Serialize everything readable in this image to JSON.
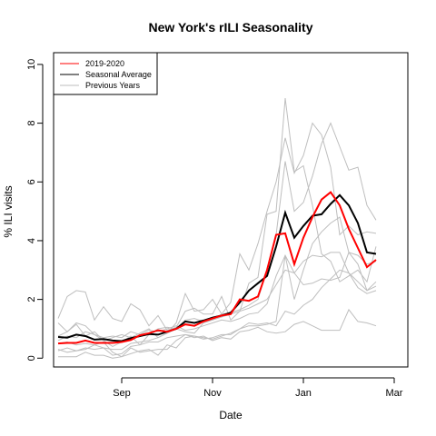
{
  "chart_data": {
    "type": "line",
    "title": "New York's rILI Seasonality",
    "xlabel": "Date",
    "ylabel": "% ILI visits",
    "x_ticks": [
      {
        "week": 7,
        "label": "Sep"
      },
      {
        "week": 17,
        "label": "Nov"
      },
      {
        "week": 27,
        "label": "Jan"
      },
      {
        "week": 37,
        "label": "Mar"
      }
    ],
    "y_ticks": [
      0,
      2,
      4,
      6,
      8,
      10
    ],
    "xlim": [
      -0.5,
      38.5
    ],
    "ylim": [
      -0.3,
      10.4
    ],
    "grid": false,
    "legend_position": "top-left",
    "legend": [
      {
        "label": "2019-2020",
        "color": "#ff0000"
      },
      {
        "label": "Seasonal Average",
        "color": "#000000"
      },
      {
        "label": "Previous Years",
        "color": "#bebebe"
      }
    ],
    "current_season": {
      "name": "2019-2020",
      "color": "#ff0000",
      "values": [
        0.5,
        0.52,
        0.52,
        0.6,
        0.52,
        0.52,
        0.52,
        0.55,
        0.62,
        0.78,
        0.85,
        0.95,
        0.9,
        1.0,
        1.15,
        1.1,
        1.25,
        1.35,
        1.45,
        1.5,
        2.0,
        1.95,
        2.1,
        3.0,
        4.2,
        4.25,
        3.2,
        4.1,
        4.8,
        5.4,
        5.65,
        5.2,
        4.4,
        3.75,
        3.1,
        3.35
      ]
    },
    "seasonal_average": {
      "name": "Seasonal Average",
      "color": "#000000",
      "values": [
        0.72,
        0.7,
        0.8,
        0.75,
        0.63,
        0.65,
        0.6,
        0.58,
        0.68,
        0.75,
        0.82,
        0.8,
        0.9,
        1.0,
        1.25,
        1.2,
        1.28,
        1.38,
        1.45,
        1.55,
        1.9,
        2.3,
        2.55,
        2.8,
        3.8,
        4.95,
        4.1,
        4.5,
        4.85,
        4.9,
        5.25,
        5.55,
        5.2,
        4.6,
        3.6,
        3.55
      ]
    },
    "previous_years": [
      {
        "color": "#bebebe",
        "values": [
          1.35,
          2.1,
          2.3,
          2.25,
          1.3,
          1.75,
          1.35,
          1.25,
          1.85,
          1.65,
          1.1,
          1.45,
          0.95,
          1.05,
          1.6,
          1.7,
          1.5,
          1.5,
          2.1,
          1.3,
          1.6,
          2.55,
          2.75,
          4.9,
          5.0,
          8.85,
          6.35,
          6.55,
          5.2,
          3.55,
          3.3,
          2.6,
          2.8,
          3.0,
          2.6,
          3.8
        ]
      },
      {
        "color": "#bebebe",
        "values": [
          1.2,
          0.9,
          1.15,
          0.75,
          0.9,
          0.6,
          0.7,
          0.8,
          0.7,
          0.85,
          1.0,
          0.7,
          0.85,
          1.2,
          2.2,
          1.6,
          1.65,
          2.0,
          1.5,
          1.9,
          3.55,
          3.0,
          3.9,
          5.0,
          6.0,
          7.5,
          6.3,
          6.9,
          8.0,
          7.6,
          6.5,
          4.2,
          4.5,
          4.2,
          4.3,
          4.25
        ]
      },
      {
        "color": "#bebebe",
        "values": [
          0.75,
          0.9,
          1.2,
          1.1,
          0.8,
          0.6,
          0.4,
          0.55,
          0.75,
          0.45,
          0.8,
          1.0,
          1.05,
          1.0,
          0.9,
          0.85,
          1.2,
          1.3,
          1.5,
          1.55,
          1.65,
          1.8,
          2.0,
          3.0,
          4.2,
          6.7,
          5.0,
          5.3,
          6.2,
          7.3,
          8.0,
          7.2,
          6.4,
          6.5,
          5.2,
          4.7
        ]
      },
      {
        "color": "#bebebe",
        "values": [
          0.6,
          0.75,
          0.7,
          0.9,
          0.8,
          0.7,
          0.75,
          0.7,
          0.9,
          0.8,
          0.95,
          0.9,
          1.0,
          1.1,
          0.95,
          1.0,
          1.1,
          1.2,
          1.3,
          1.25,
          1.35,
          1.5,
          1.55,
          1.85,
          2.8,
          3.5,
          2.9,
          2.5,
          2.55,
          2.7,
          2.65,
          2.75,
          3.6,
          3.5,
          3.2,
          3.3
        ]
      },
      {
        "color": "#bebebe",
        "values": [
          0.3,
          0.2,
          0.25,
          0.3,
          0.45,
          0.55,
          0.2,
          0.05,
          0.35,
          0.2,
          0.25,
          0.3,
          0.3,
          0.6,
          0.8,
          0.75,
          0.7,
          0.65,
          0.75,
          0.85,
          1.0,
          1.1,
          1.1,
          1.15,
          1.25,
          3.5,
          2.0,
          3.0,
          3.9,
          4.3,
          4.6,
          4.8,
          3.6,
          3.2,
          2.3,
          2.6
        ]
      },
      {
        "color": "#bebebe",
        "values": [
          0.05,
          0.05,
          0.05,
          0.2,
          0.1,
          0.1,
          0.0,
          0.05,
          0.15,
          0.25,
          0.3,
          0.1,
          0.45,
          0.35,
          0.7,
          0.75,
          0.65,
          0.7,
          0.8,
          0.8,
          1.0,
          1.2,
          1.15,
          1.2,
          1.1,
          1.6,
          1.5,
          1.8,
          2.0,
          2.4,
          2.7,
          3.0,
          2.9,
          2.6,
          2.3,
          2.45
        ]
      },
      {
        "color": "#bebebe",
        "values": [
          0.5,
          0.55,
          0.45,
          0.5,
          0.45,
          0.35,
          0.3,
          0.3,
          0.5,
          0.55,
          0.6,
          0.7,
          0.85,
          1.0,
          1.3,
          1.35,
          1.25,
          1.3,
          1.4,
          1.5,
          1.6,
          1.7,
          1.85,
          2.0,
          2.5,
          3.0,
          2.9,
          3.3,
          3.5,
          3.45,
          3.6,
          3.6,
          2.9,
          2.4,
          2.2,
          2.3
        ]
      },
      {
        "color": "#bebebe",
        "values": [
          0.25,
          0.35,
          0.25,
          0.35,
          0.3,
          0.35,
          0.1,
          0.15,
          0.4,
          0.45,
          0.55,
          0.55,
          0.7,
          0.75,
          0.8,
          0.7,
          0.75,
          0.6,
          0.7,
          0.65,
          0.9,
          0.95,
          1.05,
          0.9,
          0.85,
          0.9,
          1.15,
          1.25,
          1.1,
          0.95,
          0.95,
          0.95,
          1.65,
          1.25,
          1.2,
          1.1
        ]
      }
    ]
  }
}
